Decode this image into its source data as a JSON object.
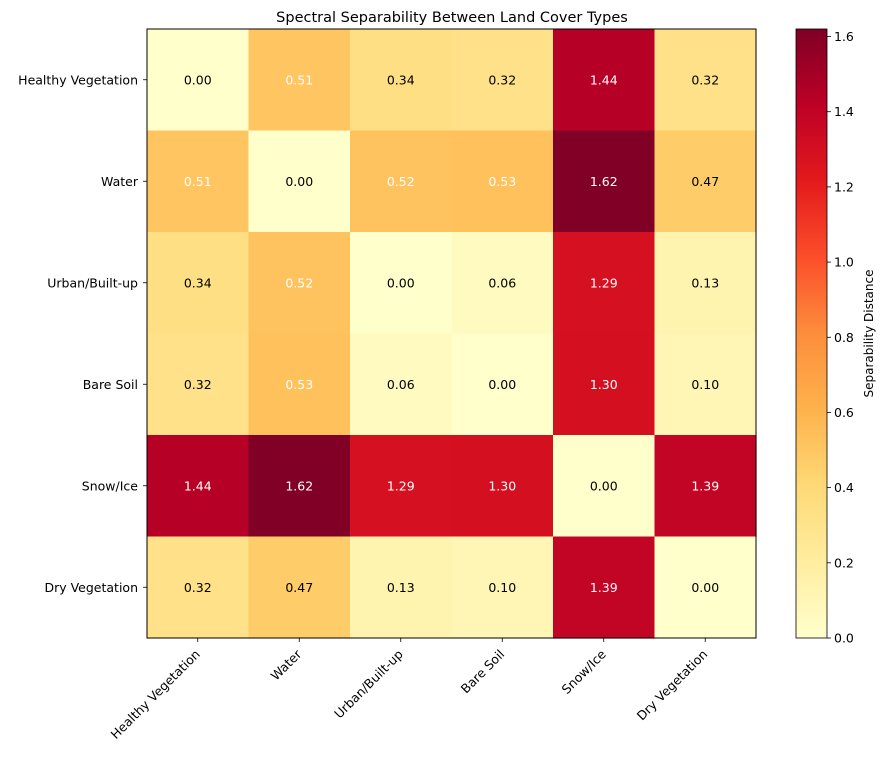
{
  "chart_data": {
    "type": "heatmap",
    "title": "Spectral Separability Between Land Cover Types",
    "xlabel": "",
    "ylabel": "",
    "x_categories": [
      "Healthy Vegetation",
      "Water",
      "Urban/Built-up",
      "Bare Soil",
      "Snow/Ice",
      "Dry Vegetation"
    ],
    "y_categories": [
      "Healthy Vegetation",
      "Water",
      "Urban/Built-up",
      "Bare Soil",
      "Snow/Ice",
      "Dry Vegetation"
    ],
    "values": [
      [
        0.0,
        0.51,
        0.34,
        0.32,
        1.44,
        0.32
      ],
      [
        0.51,
        0.0,
        0.52,
        0.53,
        1.62,
        0.47
      ],
      [
        0.34,
        0.52,
        0.0,
        0.06,
        1.29,
        0.13
      ],
      [
        0.32,
        0.53,
        0.06,
        0.0,
        1.3,
        0.1
      ],
      [
        1.44,
        1.62,
        1.29,
        1.3,
        0.0,
        1.39
      ],
      [
        0.32,
        0.47,
        0.13,
        0.1,
        1.39,
        0.0
      ]
    ],
    "colorbar": {
      "label": "Separability Distance",
      "range": [
        0,
        1.62
      ],
      "ticks": [
        "0.0",
        "0.2",
        "0.4",
        "0.6",
        "0.8",
        "1.0",
        "1.2",
        "1.4",
        "1.6"
      ],
      "colormap": "YlOrRd"
    },
    "grid": false
  }
}
